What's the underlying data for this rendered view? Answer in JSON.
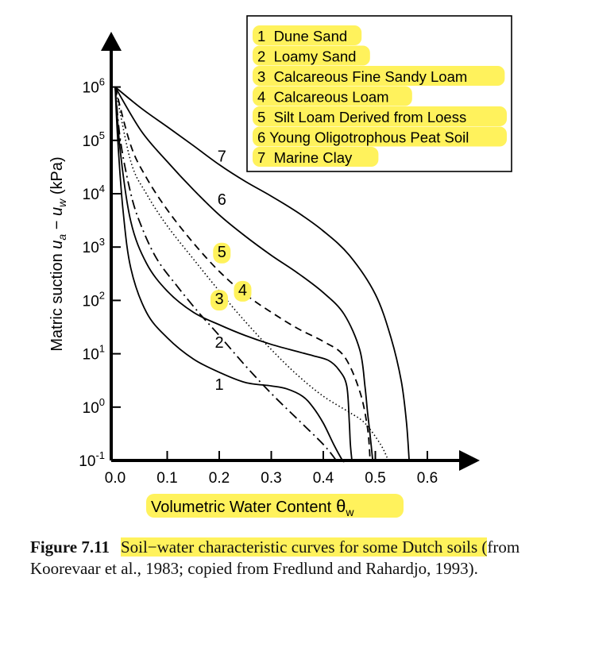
{
  "chart_data": {
    "type": "line",
    "xlabel_main": "Volumetric Water Content",
    "xlabel_symbol": "θ",
    "xlabel_subscript": "w",
    "ylabel": "Matric suction u_a − u_w (kPa)",
    "ylabel_parts": {
      "prefix": "Matric suction ",
      "u1": "u",
      "sub1": "a",
      "minus": " − ",
      "u2": "u",
      "sub2": "w",
      "suffix": " (kPa)"
    },
    "xlim": [
      0.0,
      0.6
    ],
    "ylim_log10": [
      -1,
      6
    ],
    "y_scale": "log",
    "x_ticks": [
      "0.0",
      "0.1",
      "0.2",
      "0.3",
      "0.4",
      "0.5",
      "0.6"
    ],
    "y_ticks": [
      {
        "base": "10",
        "exp": "6"
      },
      {
        "base": "10",
        "exp": "5"
      },
      {
        "base": "10",
        "exp": "4"
      },
      {
        "base": "10",
        "exp": "3"
      },
      {
        "base": "10",
        "exp": "2"
      },
      {
        "base": "10",
        "exp": "1"
      },
      {
        "base": "10",
        "exp": "0"
      },
      {
        "base": "10",
        "exp": "-1"
      }
    ],
    "legend_position": "top-right",
    "legend": [
      "1  Dune Sand",
      "2  Loamy Sand",
      "3  Calcareous Fine Sandy Loam",
      "4  Calcareous Loam",
      "5  Silt Loam Derived from Loess",
      "6 Young Oligotrophous Peat Soil",
      "7  Marine Clay"
    ],
    "series": [
      {
        "label": "1",
        "style": "solid",
        "x": [
          0.0,
          0.005,
          0.015,
          0.03,
          0.06,
          0.1,
          0.15,
          0.2,
          0.25,
          0.3,
          0.33,
          0.36,
          0.38,
          0.4,
          0.42,
          0.437,
          0.44
        ],
        "y": [
          1000000,
          100000,
          5000,
          400,
          60,
          20,
          8,
          4.5,
          2.9,
          2.5,
          2.2,
          1.6,
          1.0,
          0.5,
          0.2,
          0.1,
          0.1
        ]
      },
      {
        "label": "2",
        "style": "solid",
        "x": [
          0.0,
          0.01,
          0.03,
          0.06,
          0.1,
          0.15,
          0.2,
          0.25,
          0.3,
          0.35,
          0.38,
          0.41,
          0.43,
          0.445,
          0.45,
          0.452,
          0.455
        ],
        "y": [
          1000000,
          60000,
          3000,
          500,
          150,
          60,
          35,
          22,
          15,
          11,
          9.2,
          7.5,
          5,
          2.5,
          0.5,
          0.2,
          0.1
        ]
      },
      {
        "label": "3",
        "style": "dashdot",
        "x": [
          0.0,
          0.01,
          0.03,
          0.05,
          0.08,
          0.12,
          0.16,
          0.2,
          0.25,
          0.3,
          0.35,
          0.4,
          0.425
        ],
        "y": [
          1000000,
          100000,
          10000,
          2500,
          600,
          180,
          60,
          22,
          6,
          1.8,
          0.6,
          0.2,
          0.1
        ]
      },
      {
        "label": "4",
        "style": "dotted",
        "x": [
          0.0,
          0.03,
          0.06,
          0.1,
          0.15,
          0.2,
          0.25,
          0.3,
          0.35,
          0.4,
          0.45,
          0.48,
          0.51,
          0.525
        ],
        "y": [
          1000000,
          40000,
          10000,
          2500,
          600,
          150,
          40,
          12,
          4,
          1.6,
          0.8,
          0.5,
          0.2,
          0.1
        ]
      },
      {
        "label": "5",
        "style": "dashed",
        "x": [
          0.0,
          0.03,
          0.06,
          0.1,
          0.15,
          0.2,
          0.25,
          0.3,
          0.35,
          0.4,
          0.44,
          0.47,
          0.485,
          0.49
        ],
        "y": [
          1000000,
          80000,
          20000,
          5000,
          1200,
          350,
          130,
          60,
          30,
          17,
          9,
          2,
          0.4,
          0.1
        ]
      },
      {
        "label": "6",
        "style": "solid",
        "x": [
          0.0,
          0.05,
          0.1,
          0.15,
          0.2,
          0.25,
          0.3,
          0.35,
          0.4,
          0.44,
          0.47,
          0.48,
          0.485,
          0.49,
          0.495
        ],
        "y": [
          1000000,
          150000,
          40000,
          12000,
          4000,
          1600,
          700,
          330,
          140,
          55,
          12,
          2.5,
          0.8,
          0.3,
          0.1
        ]
      },
      {
        "label": "7",
        "style": "solid",
        "x": [
          0.0,
          0.05,
          0.1,
          0.15,
          0.2,
          0.25,
          0.3,
          0.35,
          0.4,
          0.45,
          0.5,
          0.53,
          0.55,
          0.56,
          0.565
        ],
        "y": [
          1000000,
          400000,
          180000,
          80000,
          35000,
          17000,
          9000,
          4500,
          2000,
          700,
          130,
          20,
          3,
          0.5,
          0.1
        ]
      }
    ],
    "curve_labels": [
      {
        "text": "7",
        "x": 0.205,
        "y": 40000,
        "highlight": false
      },
      {
        "text": "6",
        "x": 0.205,
        "y": 6200,
        "highlight": false
      },
      {
        "text": "5",
        "x": 0.205,
        "y": 650,
        "highlight": true
      },
      {
        "text": "4",
        "x": 0.245,
        "y": 125,
        "highlight": true
      },
      {
        "text": "3",
        "x": 0.2,
        "y": 85,
        "highlight": true
      },
      {
        "text": "2",
        "x": 0.2,
        "y": 13,
        "highlight": false
      },
      {
        "text": "1",
        "x": 0.2,
        "y": 2.1,
        "highlight": false
      }
    ]
  },
  "caption": {
    "figure_label": "Figure 7.11",
    "text_highlighted": "Soil−water characteristic curves for some Dutch soils (",
    "text_plain": "from Koorevaar et al., 1983; copied from Fredlund and Rahardjo, 1993)."
  },
  "colors": {
    "highlight": "#fff25c",
    "ink": "#111111"
  }
}
